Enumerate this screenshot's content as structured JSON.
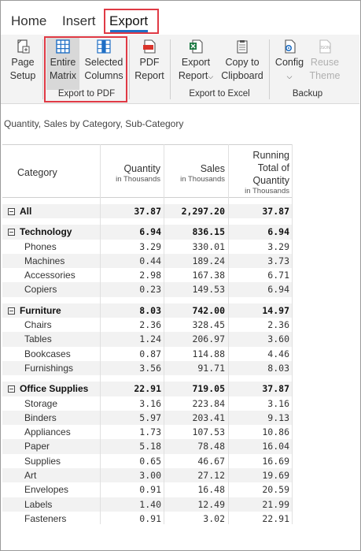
{
  "tabs": [
    {
      "label": "Home"
    },
    {
      "label": "Insert"
    },
    {
      "label": "Export"
    }
  ],
  "ribbon": {
    "page_setup": {
      "line1": "Page",
      "line2": "Setup"
    },
    "entire_matrix": {
      "line1": "Entire",
      "line2": "Matrix"
    },
    "selected_columns": {
      "line1": "Selected",
      "line2": "Columns"
    },
    "pdf_report": {
      "line1": "PDF",
      "line2": "Report"
    },
    "export_report": {
      "line1": "Export",
      "line2": "Report"
    },
    "copy_clipboard": {
      "line1": "Copy to",
      "line2": "Clipboard"
    },
    "config": {
      "line1": "Config"
    },
    "reuse_theme": {
      "line1": "Reuse",
      "line2": "Theme"
    },
    "group_pdf": "Export to PDF",
    "group_excel": "Export to Excel",
    "group_backup": "Backup",
    "json_badge": "JSON"
  },
  "report": {
    "title": "Quantity, Sales by Category, Sub-Category",
    "headers": {
      "category": "Category",
      "quantity": "Quantity",
      "quantity_sub": "in Thousands",
      "sales": "Sales",
      "sales_sub": "in Thousands",
      "running_l1": "Running",
      "running_l2": "Total of",
      "running_l3": "Quantity",
      "running_sub": "in Thousands"
    },
    "rows": [
      {
        "label": "All",
        "q": "37.87",
        "s": "2,297.20",
        "r": "37.87",
        "group": true
      },
      {
        "label": "Technology",
        "q": "6.94",
        "s": "836.15",
        "r": "6.94",
        "group": true
      },
      {
        "label": "Phones",
        "q": "3.29",
        "s": "330.01",
        "r": "3.29"
      },
      {
        "label": "Machines",
        "q": "0.44",
        "s": "189.24",
        "r": "3.73"
      },
      {
        "label": "Accessories",
        "q": "2.98",
        "s": "167.38",
        "r": "6.71"
      },
      {
        "label": "Copiers",
        "q": "0.23",
        "s": "149.53",
        "r": "6.94"
      },
      {
        "label": "Furniture",
        "q": "8.03",
        "s": "742.00",
        "r": "14.97",
        "group": true
      },
      {
        "label": "Chairs",
        "q": "2.36",
        "s": "328.45",
        "r": "2.36"
      },
      {
        "label": "Tables",
        "q": "1.24",
        "s": "206.97",
        "r": "3.60"
      },
      {
        "label": "Bookcases",
        "q": "0.87",
        "s": "114.88",
        "r": "4.46"
      },
      {
        "label": "Furnishings",
        "q": "3.56",
        "s": "91.71",
        "r": "8.03"
      },
      {
        "label": "Office Supplies",
        "q": "22.91",
        "s": "719.05",
        "r": "37.87",
        "group": true
      },
      {
        "label": "Storage",
        "q": "3.16",
        "s": "223.84",
        "r": "3.16"
      },
      {
        "label": "Binders",
        "q": "5.97",
        "s": "203.41",
        "r": "9.13"
      },
      {
        "label": "Appliances",
        "q": "1.73",
        "s": "107.53",
        "r": "10.86"
      },
      {
        "label": "Paper",
        "q": "5.18",
        "s": "78.48",
        "r": "16.04"
      },
      {
        "label": "Supplies",
        "q": "0.65",
        "s": "46.67",
        "r": "16.69"
      },
      {
        "label": "Art",
        "q": "3.00",
        "s": "27.12",
        "r": "19.69"
      },
      {
        "label": "Envelopes",
        "q": "0.91",
        "s": "16.48",
        "r": "20.59"
      },
      {
        "label": "Labels",
        "q": "1.40",
        "s": "12.49",
        "r": "21.99"
      },
      {
        "label": "Fasteners",
        "q": "0.91",
        "s": "3.02",
        "r": "22.91"
      }
    ]
  },
  "colors": {
    "accent": "#1f6fc5",
    "highlight": "#e03a45",
    "pdf_red": "#d9342b",
    "excel_green": "#1e7b45"
  }
}
